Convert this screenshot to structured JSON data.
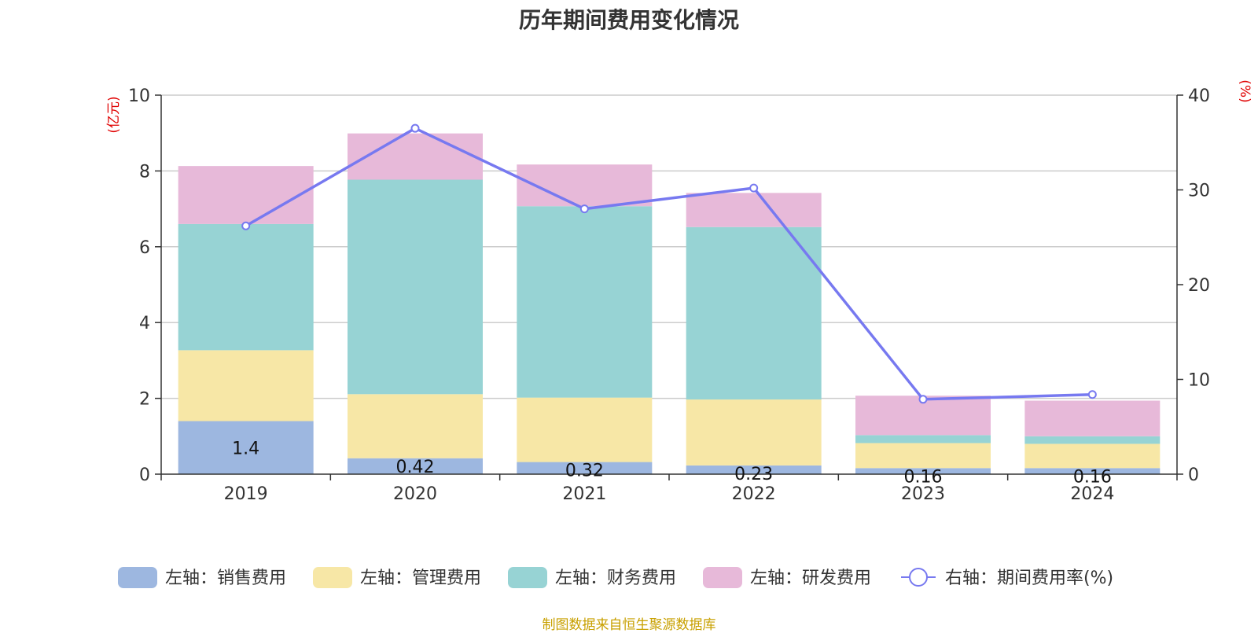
{
  "chart_data": {
    "type": "bar",
    "title": "历年期间费用变化情况",
    "categories": [
      "2019",
      "2020",
      "2021",
      "2022",
      "2023",
      "2024"
    ],
    "series": [
      {
        "name": "左轴：销售费用",
        "axis": "left",
        "type": "bar",
        "color": "#9db7e0",
        "values": [
          1.4,
          0.42,
          0.32,
          0.23,
          0.16,
          0.16
        ],
        "labels": [
          "1.4",
          "0.42",
          "0.32",
          "0.23",
          "0.16",
          "0.16"
        ]
      },
      {
        "name": "左轴：管理费用",
        "axis": "left",
        "type": "bar",
        "color": "#f7e7a6",
        "values": [
          1.87,
          1.69,
          1.7,
          1.74,
          0.66,
          0.64
        ]
      },
      {
        "name": "左轴：财务费用",
        "axis": "left",
        "type": "bar",
        "color": "#97d3d4",
        "values": [
          3.33,
          5.66,
          5.05,
          4.55,
          0.21,
          0.2
        ]
      },
      {
        "name": "左轴：研发费用",
        "axis": "left",
        "type": "bar",
        "color": "#e7b9d9",
        "values": [
          1.53,
          1.22,
          1.1,
          0.9,
          1.04,
          0.94
        ]
      },
      {
        "name": "右轴：期间费用率(%)",
        "axis": "right",
        "type": "line",
        "color": "#7779f0",
        "values": [
          26.2,
          36.5,
          28.0,
          30.2,
          7.9,
          8.4
        ]
      }
    ],
    "left_axis": {
      "unit": "(亿元)",
      "ylim": [
        0,
        10
      ],
      "ticks": [
        "0",
        "2",
        "4",
        "6",
        "8",
        "10"
      ]
    },
    "right_axis": {
      "unit": "(%)",
      "ylim": [
        0,
        40
      ],
      "ticks": [
        "0",
        "10",
        "20",
        "30",
        "40"
      ]
    },
    "grid": true,
    "legend_position": "bottom"
  },
  "source": "制图数据来自恒生聚源数据库"
}
